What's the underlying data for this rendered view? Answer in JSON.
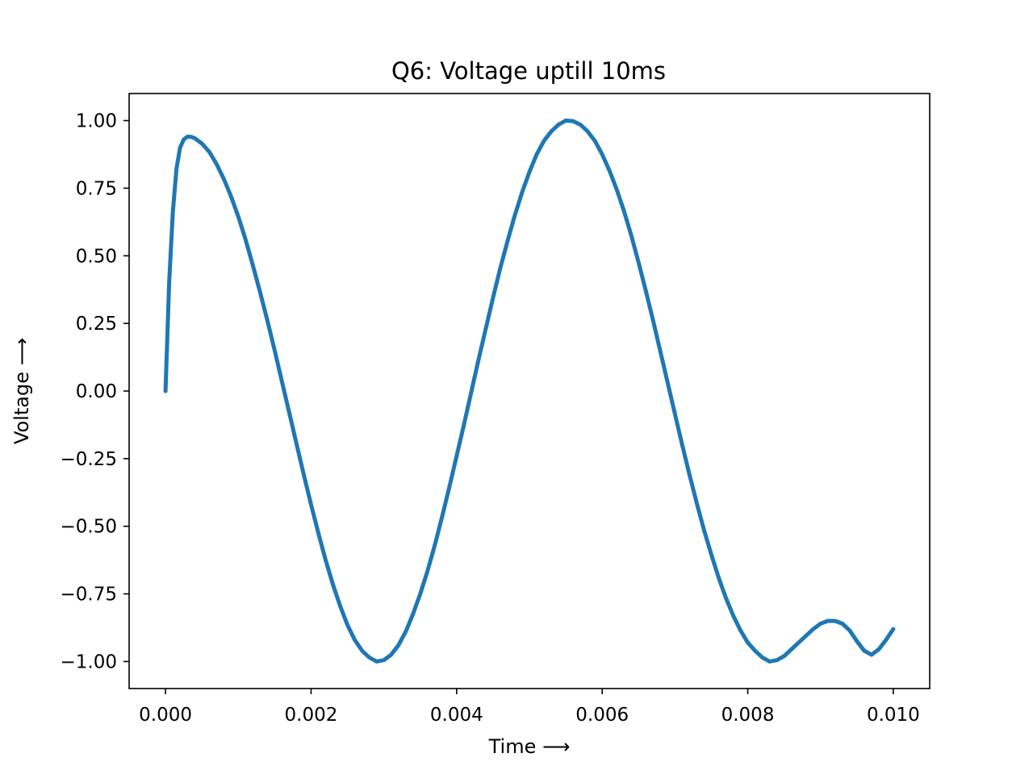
{
  "chart_data": {
    "type": "line",
    "title": "Q6: Voltage uptill 10ms",
    "xlabel": "Time ⟶",
    "ylabel": "Voltage ⟶",
    "xlim": [
      -0.0005,
      0.0105
    ],
    "ylim": [
      -1.1,
      1.1
    ],
    "xticks": [
      0.0,
      0.002,
      0.004,
      0.006,
      0.008,
      0.01
    ],
    "xtick_labels": [
      "0.000",
      "0.002",
      "0.004",
      "0.006",
      "0.008",
      "0.010"
    ],
    "yticks": [
      1.0,
      0.75,
      0.5,
      0.25,
      0.0,
      -0.25,
      -0.5,
      -0.75,
      -1.0
    ],
    "ytick_labels": [
      "1.00",
      "0.75",
      "0.50",
      "0.25",
      "0.00",
      "−0.25",
      "−0.50",
      "−0.75",
      "−1.00"
    ],
    "grid": false,
    "series": [
      {
        "color": "#1f77b4",
        "x": [
          0.0,
          5e-05,
          0.0001,
          0.00015,
          0.0002,
          0.00025,
          0.0003,
          0.00035,
          0.0004,
          0.0005,
          0.0006,
          0.0007,
          0.0008,
          0.0009,
          0.001,
          0.0011,
          0.0012,
          0.0013,
          0.0014,
          0.0015,
          0.0016,
          0.0017,
          0.0018,
          0.0019,
          0.002,
          0.0021,
          0.0022,
          0.0023,
          0.0024,
          0.0025,
          0.0026,
          0.0027,
          0.0028,
          0.0029,
          0.003,
          0.0031,
          0.0032,
          0.0033,
          0.0034,
          0.0035,
          0.0036,
          0.0037,
          0.0038,
          0.0039,
          0.004,
          0.0041,
          0.0042,
          0.0043,
          0.0044,
          0.0045,
          0.0046,
          0.0047,
          0.0048,
          0.0049,
          0.005,
          0.0051,
          0.0052,
          0.0053,
          0.0054,
          0.0055,
          0.0056,
          0.0057,
          0.0058,
          0.0059,
          0.006,
          0.0061,
          0.0062,
          0.0063,
          0.0064,
          0.0065,
          0.0066,
          0.0067,
          0.0068,
          0.0069,
          0.007,
          0.0071,
          0.0072,
          0.0073,
          0.0074,
          0.0075,
          0.0076,
          0.0077,
          0.0078,
          0.0079,
          0.008,
          0.0081,
          0.0082,
          0.0083,
          0.0084,
          0.0085,
          0.0086,
          0.0087,
          0.0088,
          0.0089,
          0.009,
          0.0091,
          0.0092,
          0.0093,
          0.0094,
          0.0095,
          0.0096,
          0.0097,
          0.0098,
          0.0099,
          0.01
        ],
        "y": [
          0.0,
          0.4,
          0.66,
          0.82,
          0.9,
          0.93,
          0.94,
          0.94,
          0.935,
          0.915,
          0.885,
          0.84,
          0.785,
          0.72,
          0.645,
          0.56,
          0.465,
          0.365,
          0.26,
          0.15,
          0.035,
          -0.08,
          -0.195,
          -0.31,
          -0.42,
          -0.525,
          -0.625,
          -0.715,
          -0.795,
          -0.865,
          -0.92,
          -0.96,
          -0.985,
          -1.0,
          -0.995,
          -0.975,
          -0.94,
          -0.89,
          -0.825,
          -0.75,
          -0.665,
          -0.57,
          -0.465,
          -0.355,
          -0.24,
          -0.125,
          -0.005,
          0.115,
          0.23,
          0.345,
          0.455,
          0.555,
          0.65,
          0.735,
          0.81,
          0.875,
          0.925,
          0.96,
          0.985,
          1.0,
          0.998,
          0.985,
          0.96,
          0.925,
          0.875,
          0.815,
          0.745,
          0.665,
          0.575,
          0.475,
          0.37,
          0.26,
          0.145,
          0.03,
          -0.085,
          -0.2,
          -0.31,
          -0.415,
          -0.515,
          -0.605,
          -0.69,
          -0.765,
          -0.83,
          -0.885,
          -0.93,
          -0.96,
          -0.985,
          -1.0,
          -0.995,
          -0.98,
          -0.955,
          -0.93,
          -0.905,
          -0.88,
          -0.86,
          -0.85,
          -0.85,
          -0.86,
          -0.885,
          -0.925,
          -0.96,
          -0.975,
          -0.955,
          -0.92,
          -0.88
        ]
      }
    ]
  }
}
